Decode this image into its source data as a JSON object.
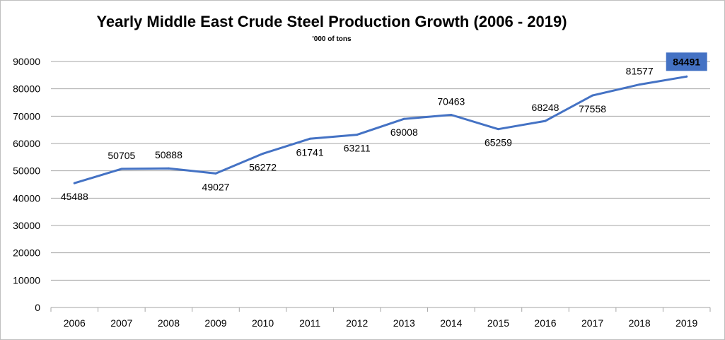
{
  "chart_data": {
    "type": "line",
    "title": "Yearly Middle East Crude Steel Production Growth (2006 - 2019)",
    "subtitle": "'000 of tons",
    "categories": [
      "2006",
      "2007",
      "2008",
      "2009",
      "2010",
      "2011",
      "2012",
      "2013",
      "2014",
      "2015",
      "2016",
      "2017",
      "2018",
      "2019"
    ],
    "series": [
      {
        "values": [
          45488,
          50705,
          50888,
          49027,
          56272,
          61741,
          63211,
          69008,
          70463,
          65259,
          68248,
          77558,
          81577,
          84491
        ]
      }
    ],
    "data_labels": [
      "45488",
      "50705",
      "50888",
      "49027",
      "56272",
      "61741",
      "63211",
      "69008",
      "70463",
      "65259",
      "68248",
      "77558",
      "81577",
      "84491"
    ],
    "highlighted_label_index": 13,
    "ylim": [
      0,
      90000
    ],
    "y_ticks": [
      0,
      10000,
      20000,
      30000,
      40000,
      50000,
      60000,
      70000,
      80000,
      90000
    ],
    "y_tick_labels": [
      "0",
      "10000",
      "20000",
      "30000",
      "40000",
      "50000",
      "60000",
      "70000",
      "80000",
      "90000"
    ],
    "grid": "horizontal",
    "legend": "none",
    "line_color": "#4472c4",
    "highlight_fill": "#4472c4",
    "grid_color": "#a6a6a6"
  }
}
